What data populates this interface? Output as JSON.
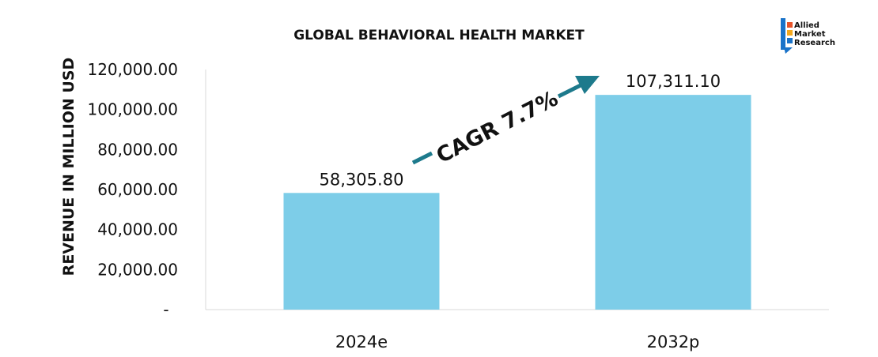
{
  "chart_data": {
    "type": "bar",
    "title": "GLOBAL BEHAVIORAL HEALTH MARKET",
    "xlabel": "",
    "ylabel": "REVENUE IN MILLION USD",
    "categories": [
      "2024e",
      "2032p"
    ],
    "values": [
      58305.8,
      107311.1
    ],
    "value_labels": [
      "58,305.80",
      "107,311.10"
    ],
    "ylim": [
      0,
      120000
    ],
    "yticks": [
      0,
      20000,
      40000,
      60000,
      80000,
      100000,
      120000
    ],
    "ytick_labels": [
      "-",
      "20,000.00",
      "40,000.00",
      "60,000.00",
      "80,000.00",
      "100,000.00",
      "120,000.00"
    ],
    "bar_color": "#7dcde8",
    "annotation": {
      "text": "CAGR 7.7%",
      "color": "#1d7a8c"
    },
    "grid": false,
    "legend": "none"
  },
  "logo": {
    "lines": [
      "Allied",
      "Market",
      "Research"
    ],
    "colors": [
      "#e8542a",
      "#f4a81d",
      "#1a73c9"
    ]
  }
}
